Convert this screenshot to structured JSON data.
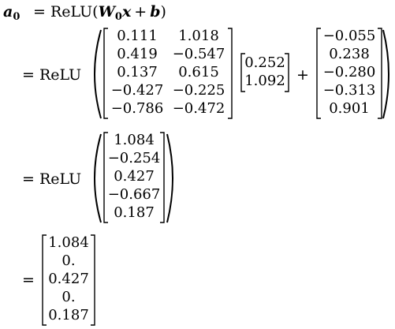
{
  "equation": {
    "lhs": {
      "base": "a",
      "sub": "0"
    },
    "equals": "=",
    "line1": {
      "func": "ReLU",
      "open": "(",
      "W": "W",
      "Wsub": "0",
      "x": "x",
      "plus": "+",
      "b": "b",
      "close": ")"
    },
    "relu": "ReLU",
    "plus": "+",
    "W0": [
      [
        "0.111",
        "1.018"
      ],
      [
        "0.419",
        "−0.547"
      ],
      [
        "0.137",
        "0.615"
      ],
      [
        "−0.427",
        "−0.225"
      ],
      [
        "−0.786",
        "−0.472"
      ]
    ],
    "x": [
      "0.252",
      "1.092"
    ],
    "b": [
      "−0.055",
      "0.238",
      "−0.280",
      "−0.313",
      "0.901"
    ],
    "z": [
      "1.084",
      "−0.254",
      "0.427",
      "−0.667",
      "0.187"
    ],
    "a0": [
      "1.084",
      "0.",
      "0.427",
      "0.",
      "0.187"
    ]
  }
}
